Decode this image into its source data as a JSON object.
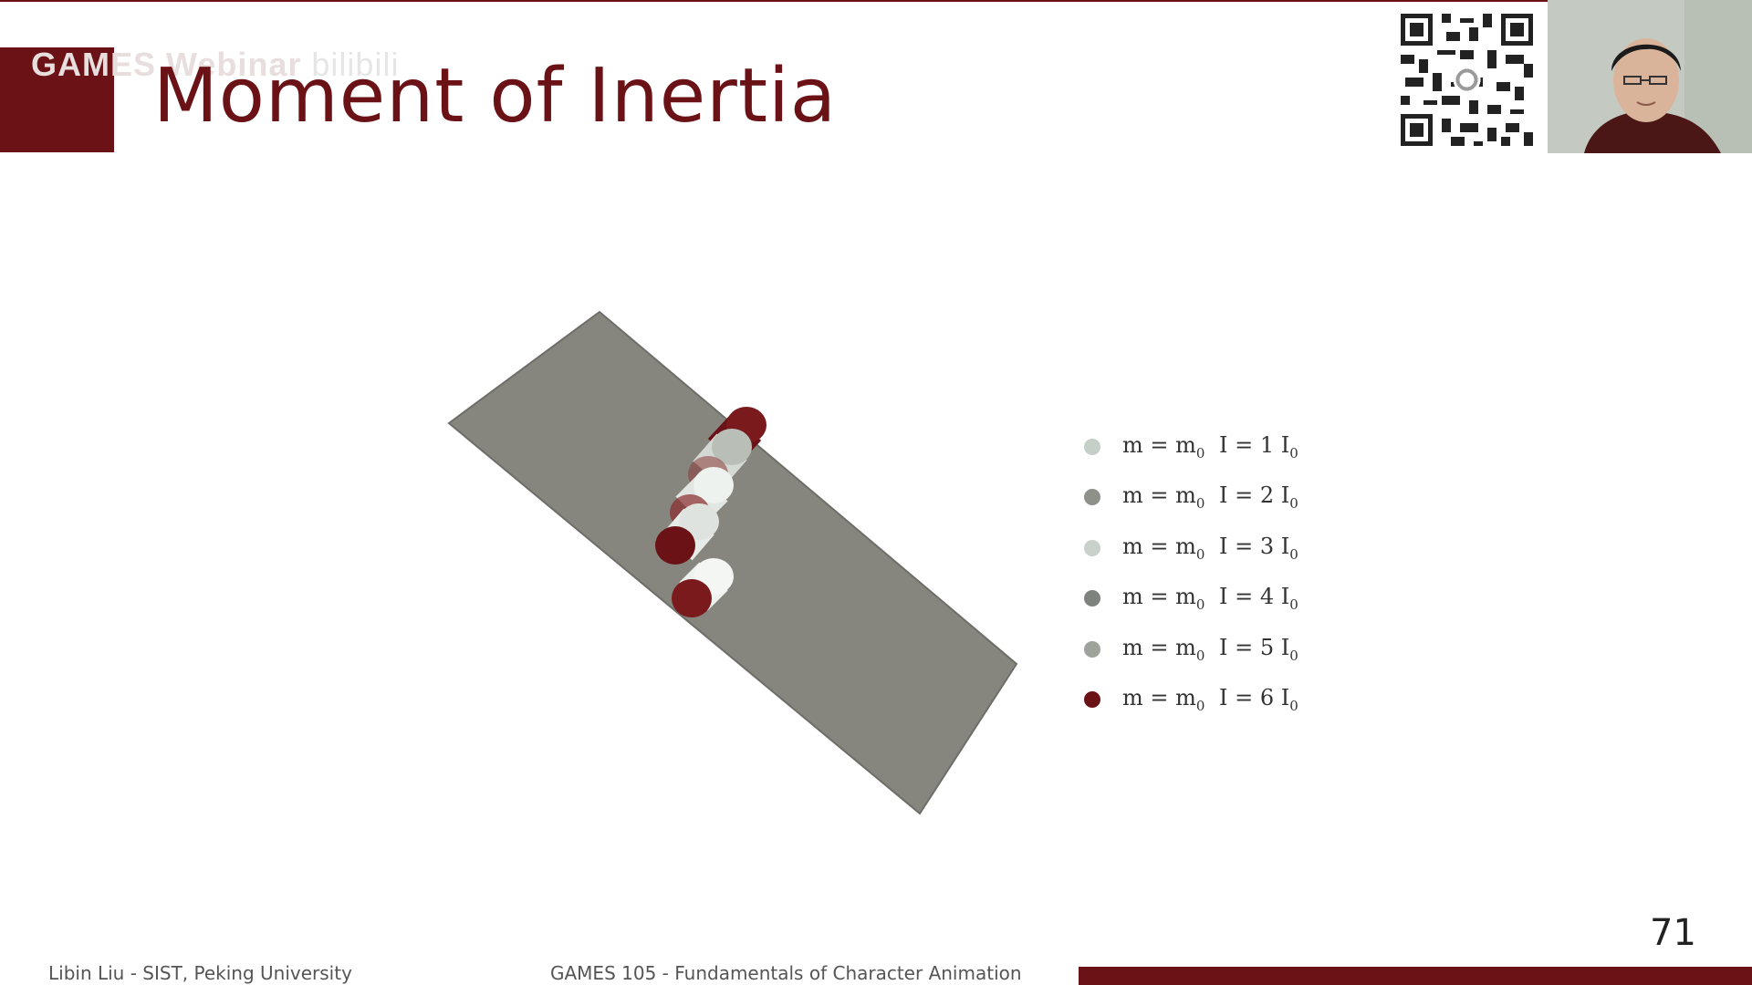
{
  "header": {
    "watermark": "GAMES Webinar",
    "watermark_faint": "bilibili",
    "title": "Moment of Inertia"
  },
  "legend": {
    "items": [
      {
        "mass": "m = m",
        "mass_sub": "0",
        "inertia": "I = 1 I",
        "inertia_sub": "0",
        "color": "#c4cfc8"
      },
      {
        "mass": "m = m",
        "mass_sub": "0",
        "inertia": "I = 2 I",
        "inertia_sub": "0",
        "color": "#8e908a"
      },
      {
        "mass": "m = m",
        "mass_sub": "0",
        "inertia": "I = 3 I",
        "inertia_sub": "0",
        "color": "#c8d2cb"
      },
      {
        "mass": "m = m",
        "mass_sub": "0",
        "inertia": "I = 4 I",
        "inertia_sub": "0",
        "color": "#7f837d"
      },
      {
        "mass": "m = m",
        "mass_sub": "0",
        "inertia": "I = 5 I",
        "inertia_sub": "0",
        "color": "#9ea39b"
      },
      {
        "mass": "m = m",
        "mass_sub": "0",
        "inertia": "I = 6 I",
        "inertia_sub": "0",
        "color": "#6b1216"
      }
    ]
  },
  "scene": {
    "plane_color": "#86867e",
    "cylinder_cap_color": "#6b1216",
    "cylinder_body_color": "#eef2ee"
  },
  "footer": {
    "left": "Libin Liu - SIST, Peking University",
    "center": "GAMES 105 - Fundamentals of Character Animation",
    "page_number": "71"
  },
  "colors": {
    "accent": "#6b1216"
  }
}
